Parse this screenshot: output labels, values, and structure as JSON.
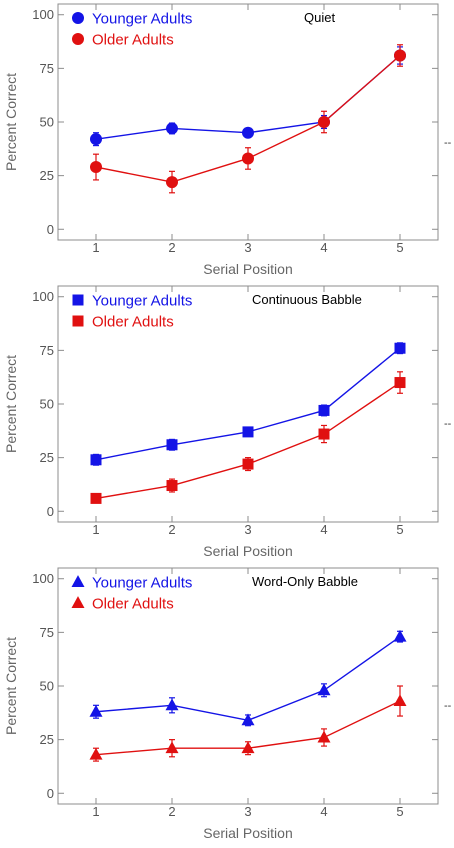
{
  "colors": {
    "younger": "#1414e6",
    "older": "#e01010",
    "frame": "#8c8c8c",
    "text": "#666666"
  },
  "side_mark": "--",
  "chart_data": [
    {
      "type": "line",
      "title": "Quiet",
      "marker": "circle",
      "xlabel": "Serial Position",
      "ylabel": "Percent Correct",
      "x": [
        1,
        2,
        3,
        4,
        5
      ],
      "xlim": [
        0.5,
        5.5
      ],
      "ylim": [
        -5,
        105
      ],
      "yticks": [
        0,
        25,
        50,
        75,
        100
      ],
      "legend_position": "top-left",
      "series": [
        {
          "name": "Younger Adults",
          "color": "#1414e6",
          "values": [
            42,
            47,
            45,
            50,
            81
          ],
          "errors": [
            3,
            2.5,
            2,
            3,
            4
          ]
        },
        {
          "name": "Older Adults",
          "color": "#e01010",
          "values": [
            29,
            22,
            33,
            50,
            81
          ],
          "errors": [
            6,
            5,
            5,
            5,
            5
          ]
        }
      ]
    },
    {
      "type": "line",
      "title": "Continuous Babble",
      "marker": "square",
      "xlabel": "Serial Position",
      "ylabel": "Percent Correct",
      "x": [
        1,
        2,
        3,
        4,
        5
      ],
      "xlim": [
        0.5,
        5.5
      ],
      "ylim": [
        -5,
        105
      ],
      "yticks": [
        0,
        25,
        50,
        75,
        100
      ],
      "legend_position": "top-left",
      "series": [
        {
          "name": "Younger Adults",
          "color": "#1414e6",
          "values": [
            24,
            31,
            37,
            47,
            76
          ],
          "errors": [
            2.5,
            2.5,
            2,
            2.5,
            2.5
          ]
        },
        {
          "name": "Older Adults",
          "color": "#e01010",
          "values": [
            6,
            12,
            22,
            36,
            60
          ],
          "errors": [
            2,
            3,
            3,
            4,
            5
          ]
        }
      ]
    },
    {
      "type": "line",
      "title": "Word-Only Babble",
      "marker": "triangle",
      "xlabel": "Serial Position",
      "ylabel": "Percent Correct",
      "x": [
        1,
        2,
        3,
        4,
        5
      ],
      "xlim": [
        0.5,
        5.5
      ],
      "ylim": [
        -5,
        105
      ],
      "yticks": [
        0,
        25,
        50,
        75,
        100
      ],
      "legend_position": "top-left",
      "series": [
        {
          "name": "Younger Adults",
          "color": "#1414e6",
          "values": [
            38,
            41,
            34,
            48,
            73
          ],
          "errors": [
            3,
            3.5,
            2.5,
            3,
            2.5
          ]
        },
        {
          "name": "Older Adults",
          "color": "#e01010",
          "values": [
            18,
            21,
            21,
            26,
            43
          ],
          "errors": [
            3,
            4,
            3,
            4,
            7
          ]
        }
      ]
    }
  ]
}
